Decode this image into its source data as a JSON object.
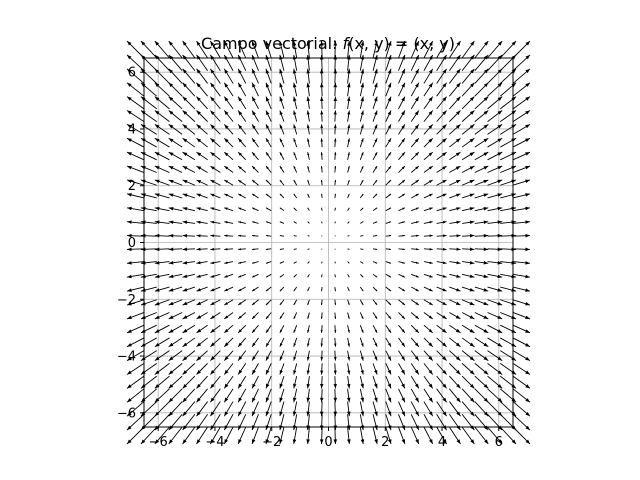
{
  "chart_data": {
    "type": "quiver",
    "title_prefix": "Campo vectorial: ",
    "title_function": "f",
    "title_args": "(x, y) = (x, y)",
    "field": {
      "u": "x",
      "v": "y"
    },
    "xlim": [
      -6.5,
      6.5
    ],
    "ylim": [
      -6.5,
      6.5
    ],
    "x_ticks": [
      -6,
      -4,
      -2,
      0,
      2,
      4,
      6
    ],
    "y_ticks": [
      -6,
      -4,
      -2,
      0,
      2,
      4,
      6
    ],
    "x_tick_labels": [
      "−6",
      "−4",
      "−2",
      "0",
      "2",
      "4",
      "6"
    ],
    "y_tick_labels": [
      "−6",
      "−4",
      "−2",
      "0",
      "2",
      "4",
      "6"
    ],
    "grid": true,
    "sample_x": {
      "start": -6.5,
      "stop": 6.5,
      "count": 30
    },
    "sample_y": {
      "start": -6.5,
      "stop": 6.5,
      "count": 30
    },
    "arrow_color": "#000000",
    "grid_color": "#b0b0b0"
  }
}
